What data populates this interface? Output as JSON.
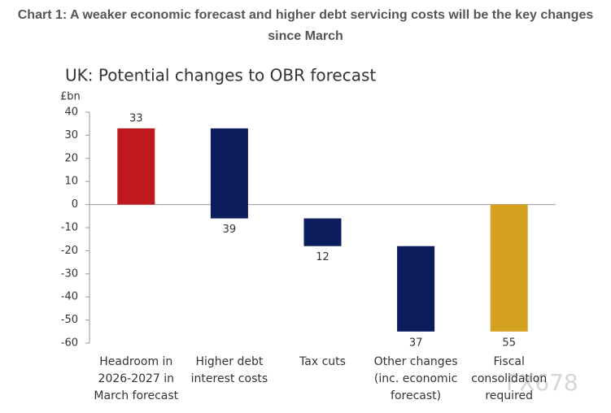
{
  "chart_data": {
    "type": "waterfall",
    "title": "Chart 1: A weaker economic forecast and higher debt servicing costs will be the key changes since March",
    "subtitle": "UK: Potential changes to OBR forecast",
    "y_label": "£bn",
    "watermark": "FX678",
    "categories": [
      [
        "Headroom in",
        "2026-2027 in",
        "March forecast"
      ],
      [
        "Higher debt",
        "interest costs"
      ],
      [
        "Tax cuts"
      ],
      [
        "Other changes",
        "(inc. economic",
        "forecast)"
      ],
      [
        "Fiscal",
        "consolidation",
        "required"
      ]
    ],
    "values": [
      33,
      -39,
      -12,
      -37,
      -55
    ],
    "value_labels": [
      "33",
      "39",
      "12",
      "37",
      "55"
    ],
    "measure": [
      "relative",
      "relative",
      "relative",
      "relative",
      "total"
    ],
    "colors": [
      "#c0181f",
      "#0b1d5c",
      "#0b1d5c",
      "#0b1d5c",
      "#d4a21f"
    ],
    "ylim": [
      -60,
      40
    ],
    "yticks": [
      40,
      30,
      20,
      10,
      0,
      -10,
      -20,
      -30,
      -40,
      -50,
      -60
    ]
  }
}
